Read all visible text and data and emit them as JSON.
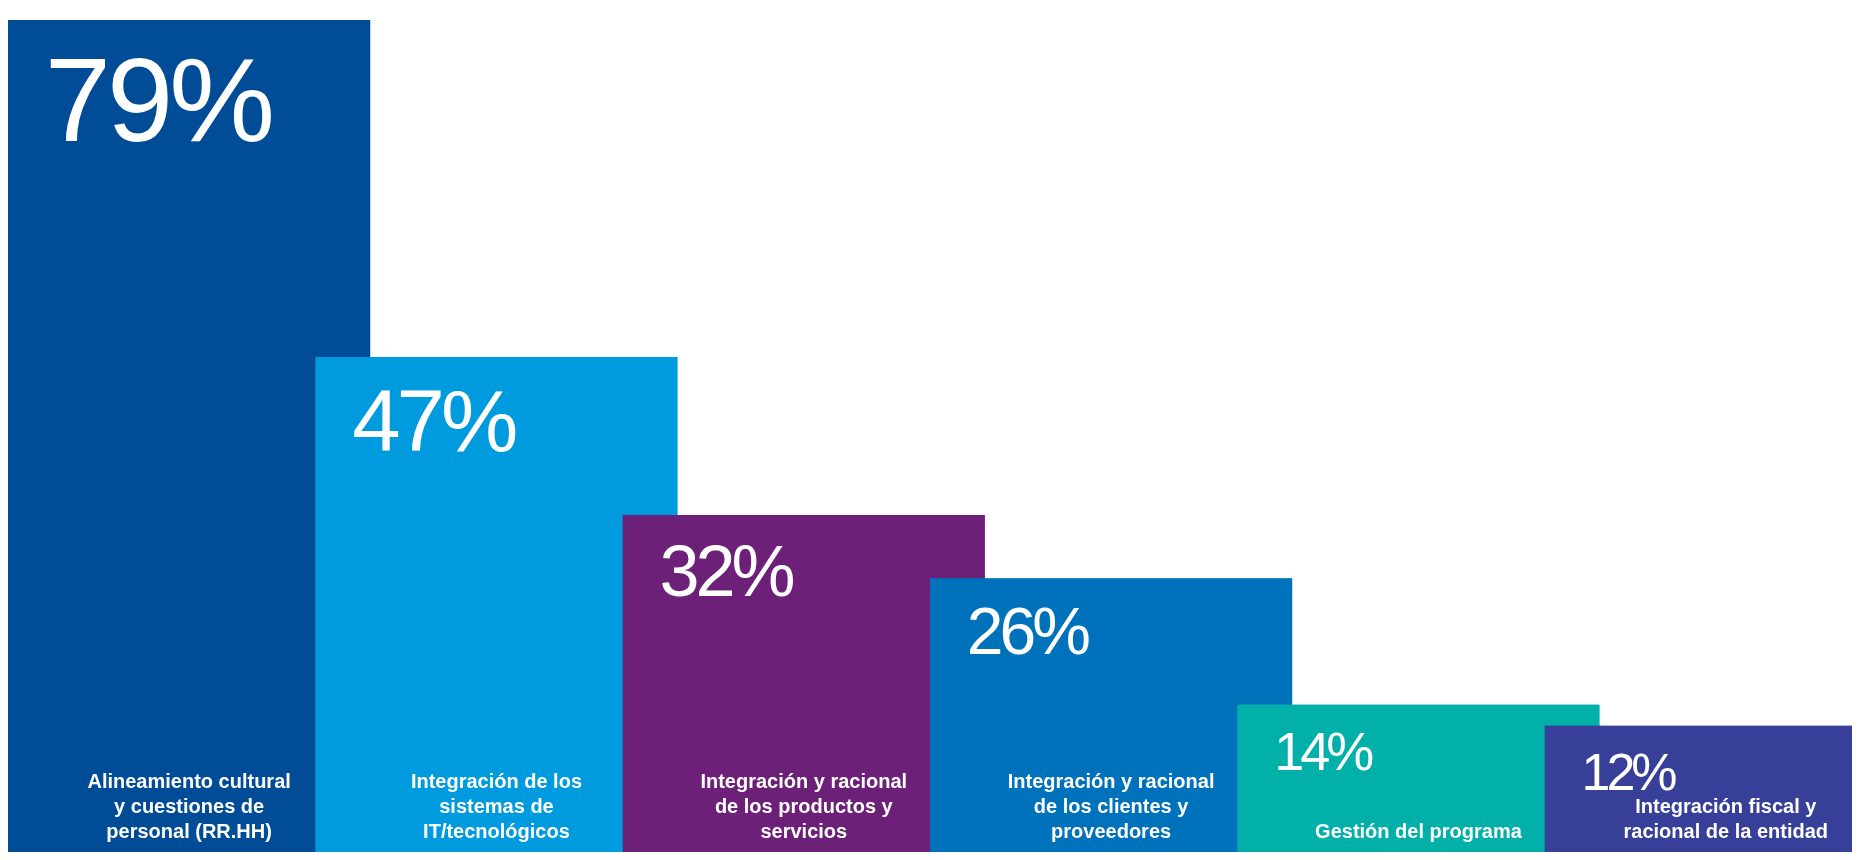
{
  "chart_data": {
    "type": "bar",
    "categories": [
      "Alineamiento cultural y cuestiones de personal (RR.HH)",
      "Integración de los sistemas de IT/tecnológicos",
      "Integración y racional de los productos y servicios",
      "Integración y racional de los clientes y proveedores",
      "Gestión del programa",
      "Integración fiscal y racional de la entidad"
    ],
    "values": [
      79,
      47,
      32,
      26,
      14,
      12
    ],
    "colors": [
      "#004c97",
      "#009bde",
      "#6d2077",
      "#0071bb",
      "#00b0a9",
      "#373f98"
    ],
    "value_labels": [
      "79%",
      "47%",
      "32%",
      "26%",
      "14%",
      "12%"
    ],
    "legend": false,
    "grid": false
  }
}
